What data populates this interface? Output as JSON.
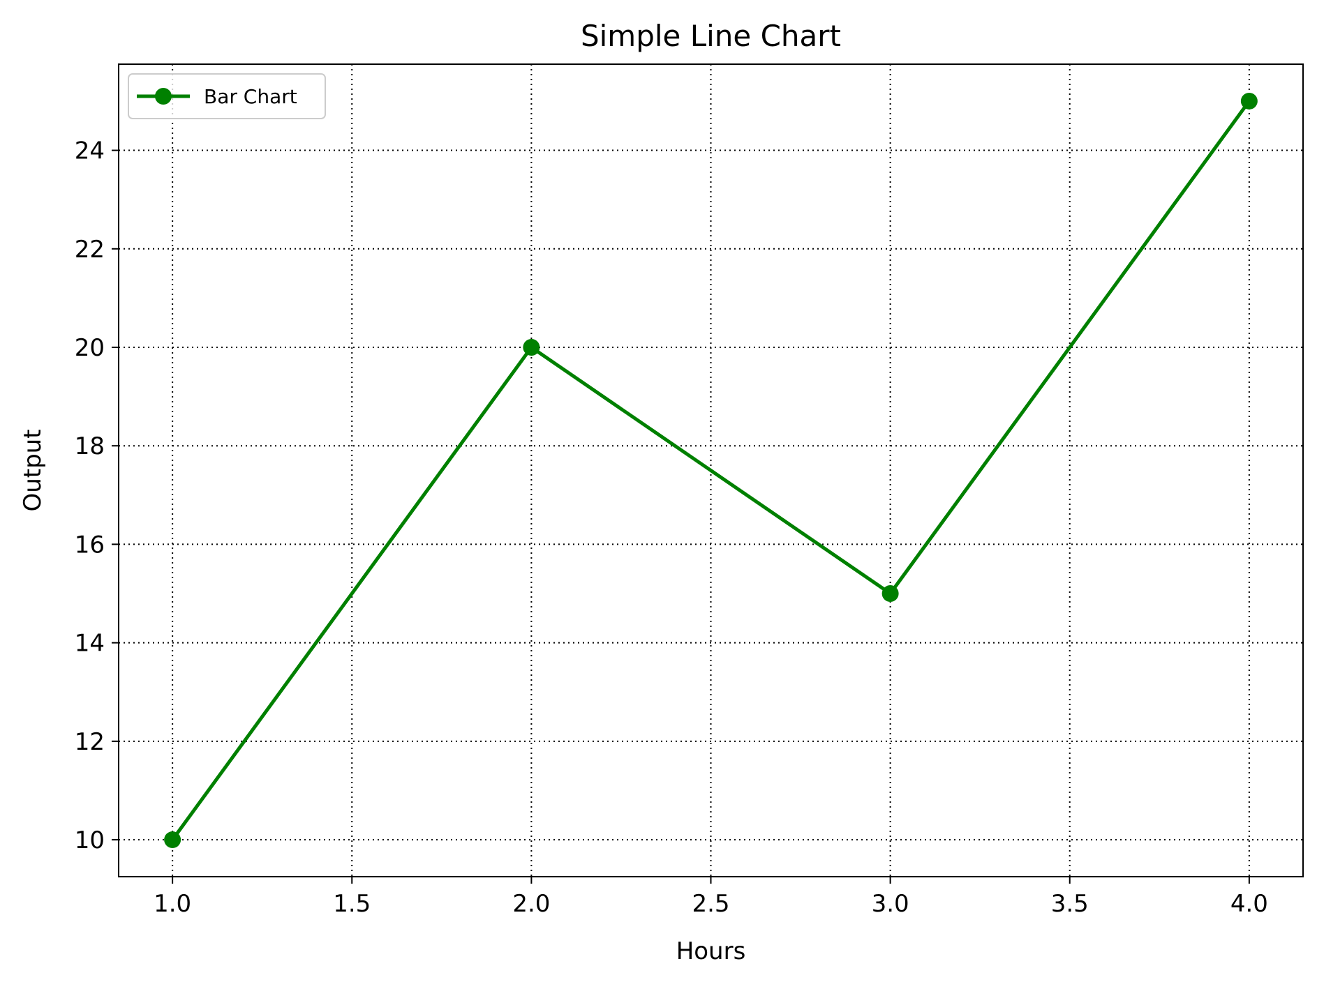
{
  "chart_data": {
    "type": "line",
    "title": "Simple Line Chart",
    "xlabel": "Hours",
    "ylabel": "Output",
    "x": [
      1.0,
      2.0,
      3.0,
      4.0
    ],
    "series": [
      {
        "name": "Bar Chart",
        "values": [
          10,
          20,
          15,
          25
        ],
        "color": "#008000"
      }
    ],
    "xlim": [
      0.85,
      4.15
    ],
    "ylim": [
      9.25,
      25.75
    ],
    "xticks": [
      1.0,
      1.5,
      2.0,
      2.5,
      3.0,
      3.5,
      4.0
    ],
    "xtick_labels": [
      "1.0",
      "1.5",
      "2.0",
      "2.5",
      "3.0",
      "3.5",
      "4.0"
    ],
    "yticks": [
      10,
      12,
      14,
      16,
      18,
      20,
      22,
      24
    ],
    "ytick_labels": [
      "10",
      "12",
      "14",
      "16",
      "18",
      "20",
      "22",
      "24"
    ],
    "grid": true,
    "legend_position": "upper-left"
  }
}
